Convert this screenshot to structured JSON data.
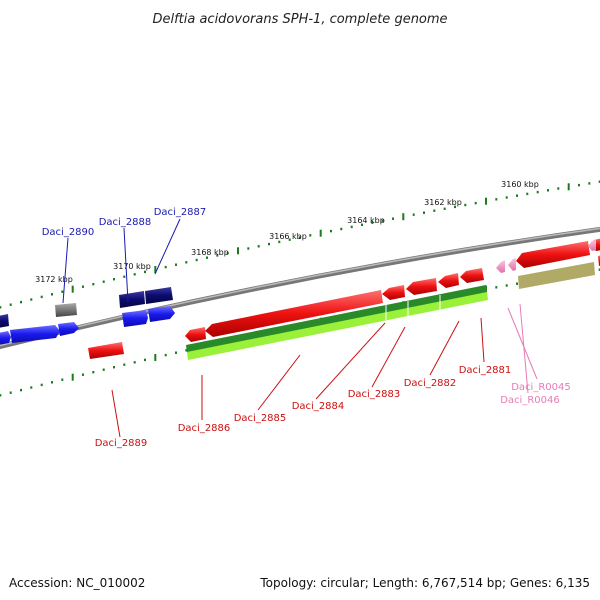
{
  "title": "Delftia acidovorans SPH-1, complete genome",
  "accession": "Accession: NC_010002",
  "summary": "Topology: circular; Length: 6,767,514 bp; Genes: 6,135",
  "colors": {
    "backbone": "#777777",
    "tick": "#1d7a1d",
    "cds_forward": "#1a1aee",
    "cds_forward_dark": "#0b0b6e",
    "cds_reverse": "#ee1111",
    "pseudo": "#777777",
    "rna": "#f28fc0",
    "label_forward": "#1a1ab0",
    "label_reverse": "#cc1111",
    "label_rna": "#e87bb5",
    "feature_green": "#2a8a2a",
    "feature_lime": "#9bf03a",
    "feature_olive": "#b0aa66"
  },
  "ticks": [
    "3160 kbp",
    "3162 kbp",
    "3164 kbp",
    "3166 kbp",
    "3168 kbp",
    "3170 kbp",
    "3172 kbp"
  ],
  "gene_labels": {
    "forward": [
      "Daci_2890",
      "Daci_2888",
      "Daci_2887"
    ],
    "reverse": [
      "Daci_2889",
      "Daci_2886",
      "Daci_2885",
      "Daci_2884",
      "Daci_2883",
      "Daci_2882",
      "Daci_2881"
    ],
    "rna": [
      "Daci_R0045",
      "Daci_R0046"
    ]
  }
}
